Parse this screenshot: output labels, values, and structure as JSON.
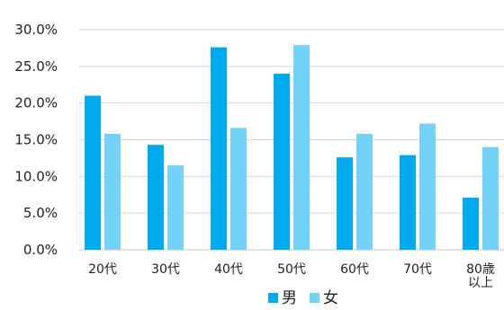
{
  "chart_data": {
    "type": "bar",
    "categories": [
      "20代",
      "30代",
      "40代",
      "50代",
      "60代",
      "70代",
      "80歳以上"
    ],
    "category_label_lines": [
      [
        "20代"
      ],
      [
        "30代"
      ],
      [
        "40代"
      ],
      [
        "50代"
      ],
      [
        "60代"
      ],
      [
        "70代"
      ],
      [
        "80歳",
        "以上"
      ]
    ],
    "series": [
      {
        "name": "男",
        "color": "#00aaee",
        "values": [
          21.0,
          14.3,
          27.6,
          24.0,
          12.6,
          12.9,
          7.1
        ]
      },
      {
        "name": "女",
        "color": "#72d2f8",
        "values": [
          15.8,
          11.5,
          16.6,
          27.9,
          15.8,
          17.2,
          14.0
        ]
      }
    ],
    "title": "",
    "xlabel": "",
    "ylabel": "",
    "ylim": [
      0,
      30
    ],
    "yticks": [
      0,
      5,
      10,
      15,
      20,
      25,
      30
    ],
    "ytick_labels": [
      "0.0%",
      "5.0%",
      "10.0%",
      "15.0%",
      "20.0%",
      "25.0%",
      "30.0%"
    ],
    "grid": true,
    "legend": "bottom-center"
  }
}
